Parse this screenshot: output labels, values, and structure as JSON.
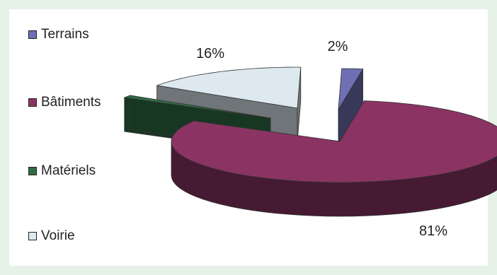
{
  "chart_data": {
    "type": "pie",
    "title": "",
    "slices": [
      {
        "name": "Terrains",
        "value": 2,
        "label": "2%",
        "color": "#6f6fb3"
      },
      {
        "name": "Bâtiments",
        "value": 81,
        "label": "81%",
        "color": "#8b3463"
      },
      {
        "name": "Matériels",
        "value": 1,
        "label": "",
        "color": "#2f6e45"
      },
      {
        "name": "Voirie",
        "value": 16,
        "label": "16%",
        "color": "#dde9ef"
      }
    ],
    "legend_position": "left",
    "exploded": true,
    "three_d": true
  }
}
